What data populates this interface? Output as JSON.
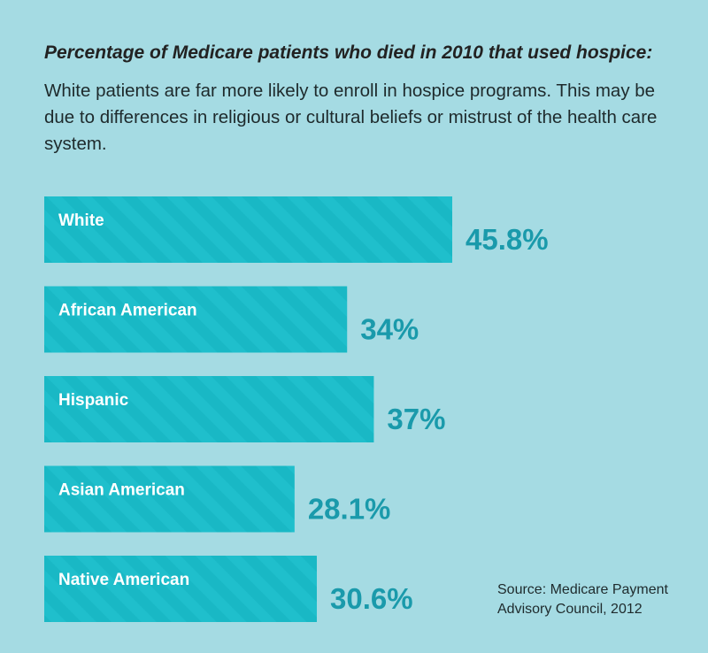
{
  "title": "Percentage of Medicare patients who died in 2010 that used hospice:",
  "subtitle": "White patients are far more likely to enroll in hospice programs. This may be due to differences in religious or cultural beliefs or mistrust of the health care system.",
  "source_line1": "Source: Medicare Payment",
  "source_line2": "Advisory Council, 2012",
  "colors": {
    "background": "#a5dbe3",
    "bar": "#19b8c5",
    "value_text": "#1a9aab"
  },
  "chart_data": {
    "type": "bar",
    "orientation": "horizontal",
    "title": "Percentage of Medicare patients who died in 2010 that used hospice:",
    "categories": [
      "White",
      "African American",
      "Hispanic",
      "Asian American",
      "Native American"
    ],
    "values": [
      45.8,
      34,
      37,
      28.1,
      30.6
    ],
    "value_labels": [
      "45.8%",
      "34%",
      "37%",
      "28.1%",
      "30.6%"
    ],
    "unit": "%",
    "grid": false,
    "legend": "none"
  }
}
